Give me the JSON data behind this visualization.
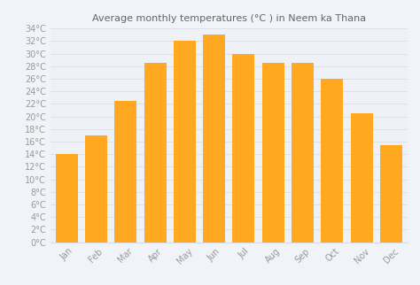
{
  "title": "Average monthly temperatures (°C ) in Neem ka Thana",
  "months": [
    "Jan",
    "Feb",
    "Mar",
    "Apr",
    "May",
    "Jun",
    "Jul",
    "Aug",
    "Sep",
    "Oct",
    "Nov",
    "Dec"
  ],
  "values": [
    14,
    17,
    22.5,
    28.5,
    32,
    33,
    30,
    28.5,
    28.5,
    26,
    20.5,
    15.5
  ],
  "bar_color": "#FFA820",
  "bar_edge_color": "#FFA820",
  "ylim": [
    0,
    34
  ],
  "yticks": [
    0,
    2,
    4,
    6,
    8,
    10,
    12,
    14,
    16,
    18,
    20,
    22,
    24,
    26,
    28,
    30,
    32,
    34
  ],
  "background_color": "#f0f4f8",
  "plot_bg_color": "#eef2f7",
  "grid_color": "#d8dde8",
  "title_fontsize": 8,
  "tick_fontsize": 7,
  "bar_width": 0.75,
  "title_color": "#666666",
  "tick_color": "#999999"
}
